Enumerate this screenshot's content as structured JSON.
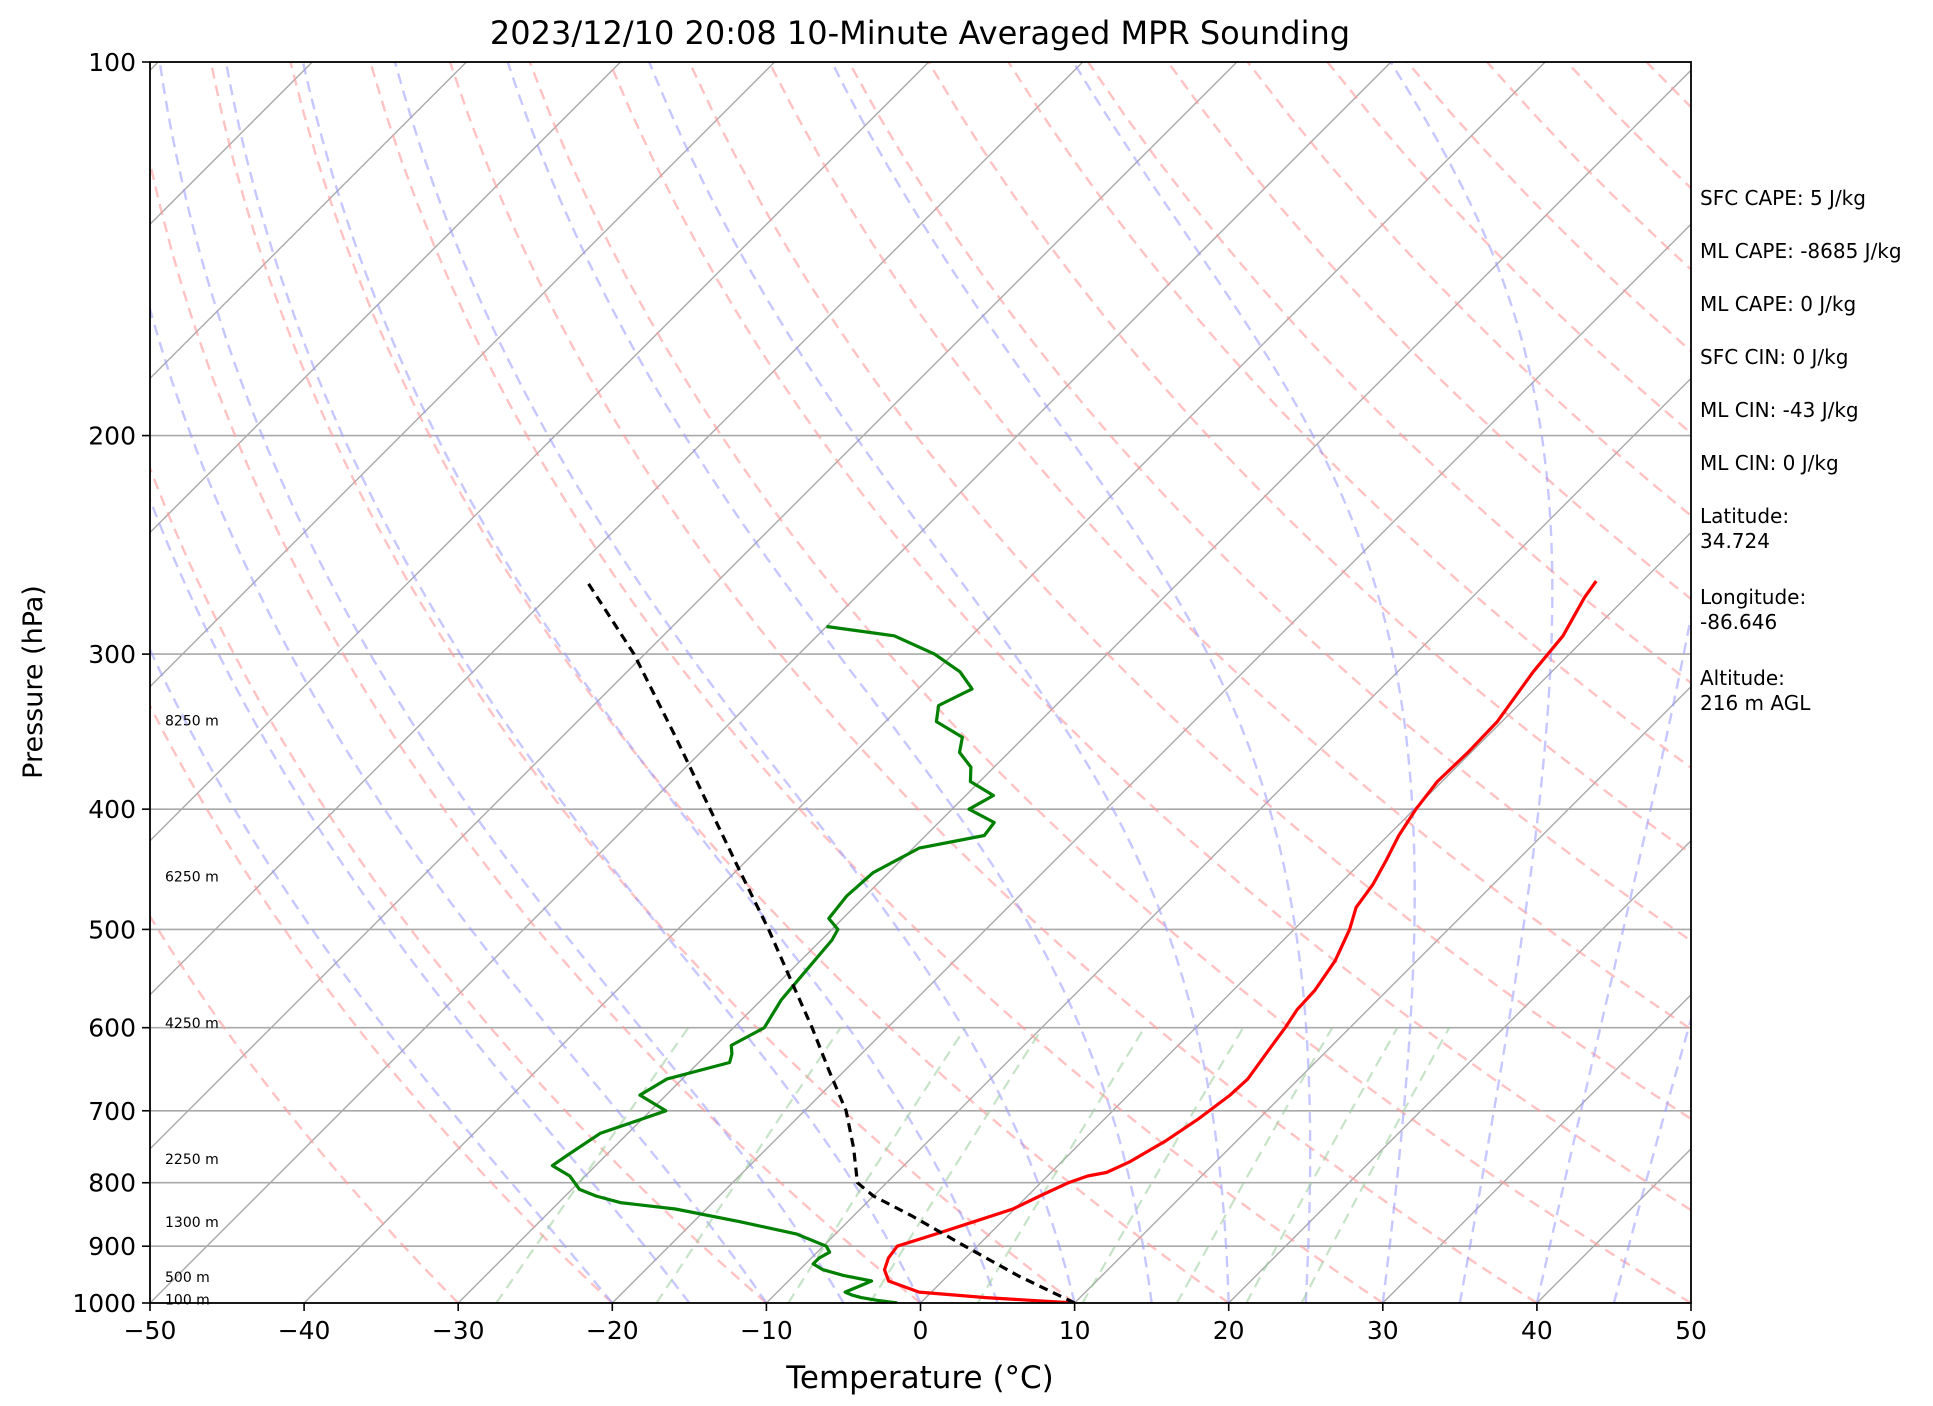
{
  "chart_data": {
    "type": "line",
    "title": "2023/12/10 20:08 10-Minute Averaged MPR Sounding",
    "xlabel": "Temperature (°C)",
    "ylabel": "Pressure (hPa)",
    "xlim": [
      -50,
      50
    ],
    "ylim": [
      1000,
      100
    ],
    "y_scale": "log",
    "grid": true,
    "x_ticks": [
      -50,
      -40,
      -30,
      -20,
      -10,
      0,
      10,
      20,
      30,
      40,
      50
    ],
    "x_tick_labels": [
      "−50",
      "−40",
      "−30",
      "−20",
      "−10",
      "0",
      "10",
      "20",
      "30",
      "40",
      "50"
    ],
    "y_ticks": [
      1000,
      900,
      800,
      700,
      600,
      500,
      400,
      300,
      200,
      100
    ],
    "y_tick_labels": [
      "1000",
      "900",
      "800",
      "700",
      "600",
      "500",
      "400",
      "300",
      "200",
      "100"
    ],
    "skew": true,
    "height_labels": [
      {
        "p": 995,
        "text": "100 m"
      },
      {
        "p": 955,
        "text": "500 m"
      },
      {
        "p": 862,
        "text": "1300 m"
      },
      {
        "p": 767,
        "text": "2250 m"
      },
      {
        "p": 596,
        "text": "4250 m"
      },
      {
        "p": 454,
        "text": "6250 m"
      },
      {
        "p": 340,
        "text": "8250 m"
      }
    ],
    "series": [
      {
        "role": "temperature",
        "color": "#ff0000",
        "points": [
          [
            1000,
            10
          ],
          [
            990,
            3.9
          ],
          [
            980,
            -0.8
          ],
          [
            960,
            -3.5
          ],
          [
            940,
            -4.5
          ],
          [
            920,
            -5
          ],
          [
            900,
            -5.2
          ],
          [
            880,
            -3.5
          ],
          [
            860,
            -1.8
          ],
          [
            840,
            -0.1
          ],
          [
            820,
            0.8
          ],
          [
            800,
            1.8
          ],
          [
            790,
            2.6
          ],
          [
            785,
            3.6
          ],
          [
            770,
            4.4
          ],
          [
            740,
            5.4
          ],
          [
            710,
            6.1
          ],
          [
            680,
            6.6
          ],
          [
            660,
            6.7
          ],
          [
            640,
            6.4
          ],
          [
            620,
            6.1
          ],
          [
            600,
            5.8
          ],
          [
            580,
            5.4
          ],
          [
            560,
            5.3
          ],
          [
            530,
            4.7
          ],
          [
            500,
            3.6
          ],
          [
            480,
            2.6
          ],
          [
            460,
            2.2
          ],
          [
            440,
            1.5
          ],
          [
            420,
            0.7
          ],
          [
            400,
            0.1
          ],
          [
            380,
            -0.3
          ],
          [
            360,
            -0.2
          ],
          [
            340,
            -0.3
          ],
          [
            310,
            -1.2
          ],
          [
            290,
            -1.6
          ],
          [
            270,
            -2.7
          ],
          [
            262,
            -3
          ]
        ]
      },
      {
        "role": "dewpoint",
        "color": "#008000",
        "points": [
          [
            1000,
            -1.5
          ],
          [
            995,
            -3
          ],
          [
            990,
            -4.2
          ],
          [
            985,
            -5
          ],
          [
            980,
            -5.6
          ],
          [
            970,
            -5.1
          ],
          [
            960,
            -4.6
          ],
          [
            950,
            -6.8
          ],
          [
            940,
            -8.5
          ],
          [
            930,
            -9.5
          ],
          [
            920,
            -9.5
          ],
          [
            910,
            -9.2
          ],
          [
            900,
            -9.8
          ],
          [
            880,
            -12.5
          ],
          [
            860,
            -17
          ],
          [
            840,
            -22
          ],
          [
            830,
            -26
          ],
          [
            820,
            -28
          ],
          [
            810,
            -29.5
          ],
          [
            790,
            -31
          ],
          [
            775,
            -32.8
          ],
          [
            760,
            -32.5
          ],
          [
            730,
            -31.8
          ],
          [
            700,
            -29
          ],
          [
            680,
            -31.7
          ],
          [
            660,
            -31
          ],
          [
            640,
            -28
          ],
          [
            630,
            -28.4
          ],
          [
            620,
            -29
          ],
          [
            600,
            -28
          ],
          [
            570,
            -28.7
          ],
          [
            550,
            -28.9
          ],
          [
            510,
            -29.3
          ],
          [
            500,
            -29.6
          ],
          [
            490,
            -30.9
          ],
          [
            470,
            -31.2
          ],
          [
            450,
            -31
          ],
          [
            430,
            -29.6
          ],
          [
            420,
            -26.2
          ],
          [
            410,
            -26.4
          ],
          [
            400,
            -28.9
          ],
          [
            390,
            -28.2
          ],
          [
            380,
            -30.6
          ],
          [
            370,
            -31.5
          ],
          [
            360,
            -33.2
          ],
          [
            350,
            -34
          ],
          [
            340,
            -36.7
          ],
          [
            330,
            -37.6
          ],
          [
            320,
            -36.5
          ],
          [
            310,
            -38.4
          ],
          [
            300,
            -41.2
          ],
          [
            290,
            -45
          ],
          [
            285,
            -50
          ]
        ]
      },
      {
        "role": "parcel",
        "color": "#000000",
        "points": [
          [
            1000,
            10
          ],
          [
            950,
            4.5
          ],
          [
            900,
            -0.8
          ],
          [
            850,
            -6.3
          ],
          [
            820,
            -10
          ],
          [
            800,
            -11.9
          ],
          [
            750,
            -14.4
          ],
          [
            700,
            -17.3
          ],
          [
            650,
            -21
          ],
          [
            600,
            -24.9
          ],
          [
            550,
            -29.3
          ],
          [
            500,
            -34.1
          ],
          [
            450,
            -39.6
          ],
          [
            400,
            -45.7
          ],
          [
            350,
            -52.6
          ],
          [
            300,
            -60.7
          ],
          [
            262,
            -68.5
          ]
        ]
      }
    ],
    "info_panel": [
      "SFC CAPE: 5 J/kg",
      "ML CAPE: -8685 J/kg",
      "ML CAPE: 0 J/kg",
      "SFC CIN: 0 J/kg",
      "ML CIN: -43 J/kg",
      "ML CIN: 0 J/kg",
      "Latitude:\n34.724",
      "Longitude:\n-86.646",
      "Altitude:\n216 m AGL"
    ],
    "background_colors": {
      "isotherm": "#a9a9a9",
      "dry_adiabat": "#ff9999",
      "moist_adiabat": "#9999ff",
      "mixing_ratio": "#99cc99",
      "isobar": "#a9a9a9"
    }
  }
}
